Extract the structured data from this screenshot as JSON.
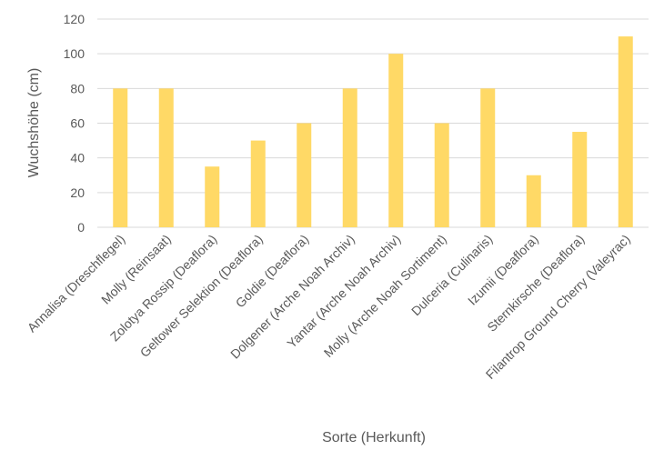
{
  "chart_data": {
    "type": "bar",
    "title": "",
    "xlabel": "Sorte (Herkunft)",
    "ylabel": "Wuchshöhe  (cm)",
    "ylim": [
      0,
      120
    ],
    "yticks": [
      0,
      20,
      40,
      60,
      80,
      100,
      120
    ],
    "grid": true,
    "legend": "none",
    "bar_color": "#FFD966",
    "grid_color": "#D9D9D9",
    "text_color": "#595959",
    "categories": [
      "Annalisa (Dreschflegel)",
      "Molly (Reinsaat)",
      "Zolotya Rossip (Deaflora)",
      "Geltower Selektion (Deaflora)",
      "Goldie (Deaflora)",
      "Dolgener (Arche Noah Archiv)",
      "Yantar (Arche Noah Archiv)",
      "Molly (Arche Noah Sortiment)",
      "Dulceria (Culinaris)",
      "Izumii (Deaflora)",
      "Sternkirsche (Deaflora)",
      "Filantrop Ground Cherry (Valeyrac)"
    ],
    "values": [
      80,
      80,
      35,
      50,
      60,
      80,
      100,
      60,
      80,
      30,
      55,
      110
    ]
  }
}
